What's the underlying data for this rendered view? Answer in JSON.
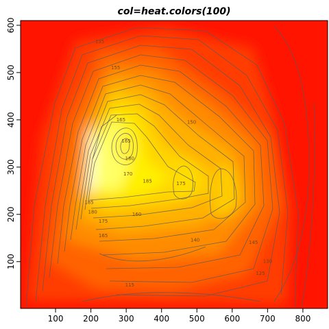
{
  "chart_data": {
    "type": "heatmap",
    "title": "col=heat.colors(100)",
    "xlabel": "",
    "ylabel": "",
    "xlim": [
      1,
      870
    ],
    "ylim": [
      1,
      610
    ],
    "x_ticks": [
      100,
      200,
      300,
      400,
      500,
      600,
      700,
      800
    ],
    "y_ticks": [
      100,
      200,
      300,
      400,
      500,
      600
    ],
    "palette": "heat.colors(100)",
    "colors": {
      "low": "#ff0000",
      "mid": "#ff8000",
      "high": "#ffff80",
      "contour": "#5a5a5a"
    },
    "z_range": [
      94,
      195
    ],
    "contour_levels": [
      100,
      105,
      110,
      115,
      120,
      125,
      130,
      135,
      140,
      145,
      150,
      155,
      160,
      165,
      170,
      175,
      180,
      185,
      190
    ],
    "contour_labels": [
      {
        "text": "135",
        "x": 225,
        "y": 565
      },
      {
        "text": "155",
        "x": 270,
        "y": 510
      },
      {
        "text": "165",
        "x": 285,
        "y": 400
      },
      {
        "text": "165",
        "x": 300,
        "y": 355
      },
      {
        "text": "180",
        "x": 310,
        "y": 318
      },
      {
        "text": "170",
        "x": 305,
        "y": 285
      },
      {
        "text": "185",
        "x": 195,
        "y": 225
      },
      {
        "text": "180",
        "x": 205,
        "y": 205
      },
      {
        "text": "175",
        "x": 235,
        "y": 185
      },
      {
        "text": "165",
        "x": 235,
        "y": 155
      },
      {
        "text": "160",
        "x": 330,
        "y": 200
      },
      {
        "text": "185",
        "x": 360,
        "y": 270
      },
      {
        "text": "175",
        "x": 455,
        "y": 265
      },
      {
        "text": "150",
        "x": 485,
        "y": 395
      },
      {
        "text": "140",
        "x": 495,
        "y": 145
      },
      {
        "text": "145",
        "x": 660,
        "y": 140
      },
      {
        "text": "130",
        "x": 700,
        "y": 100
      },
      {
        "text": "125",
        "x": 680,
        "y": 75
      },
      {
        "text": "115",
        "x": 310,
        "y": 50
      }
    ],
    "grid": false,
    "legend": "none"
  }
}
